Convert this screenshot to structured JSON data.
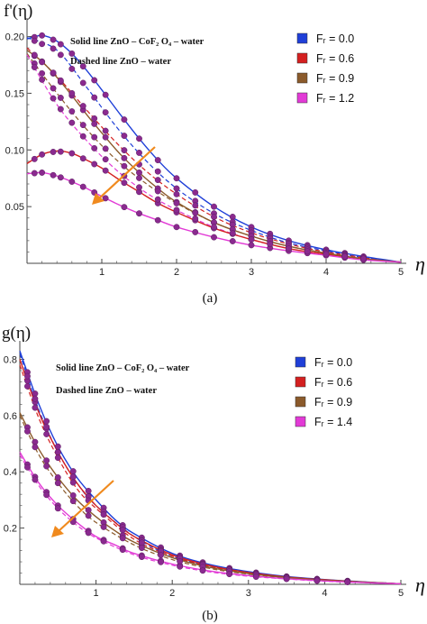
{
  "chart_data": [
    {
      "type": "line",
      "panel": "(a)",
      "ylabel": "f'(η)",
      "xlabel": "η",
      "xlim": [
        0,
        5
      ],
      "ylim": [
        0,
        0.21
      ],
      "xticks": [
        "1",
        "2",
        "3",
        "4",
        "5"
      ],
      "yticks": [
        {
          "value": 0.05,
          "label": "0.05"
        },
        {
          "value": 0.1,
          "label": "0.10"
        },
        {
          "value": 0.15,
          "label": "0.15"
        },
        {
          "value": 0.2,
          "label": "0.20"
        }
      ],
      "annotations": [
        "Solid line  ZnO – CoF₂ O₄ – water",
        "Dashed line ZnO – water"
      ],
      "legend_placement": "top-right",
      "series": [
        {
          "name": "Fᵣ = 0.0",
          "color": "#1f3fd8",
          "line": "solid",
          "x": [
            0,
            0.2,
            0.4,
            0.6,
            0.8,
            1.0,
            1.25,
            1.5,
            1.75,
            2.0,
            2.5,
            3.0,
            3.5,
            4.0,
            4.5,
            5.0
          ],
          "y": [
            0.198,
            0.201,
            0.196,
            0.185,
            0.17,
            0.153,
            0.131,
            0.11,
            0.091,
            0.075,
            0.05,
            0.032,
            0.02,
            0.012,
            0.006,
            0.001
          ]
        },
        {
          "name": "Fᵣ = 0.6",
          "color": "#d42020",
          "line": "solid",
          "x": [
            0,
            0.2,
            0.4,
            0.6,
            0.8,
            1.0,
            1.25,
            1.5,
            1.75,
            2.0,
            2.5,
            3.0,
            3.5,
            4.0,
            4.5,
            5.0
          ],
          "y": [
            0.088,
            0.096,
            0.099,
            0.097,
            0.091,
            0.084,
            0.073,
            0.063,
            0.053,
            0.045,
            0.031,
            0.021,
            0.013,
            0.008,
            0.004,
            0.001
          ]
        },
        {
          "name": "Fᵣ = 0.9",
          "color": "#8b5a2b",
          "line": "solid",
          "x": [
            0,
            0.2,
            0.4,
            0.6,
            0.8,
            1.0,
            1.25,
            1.5,
            1.75,
            2.0,
            2.5,
            3.0,
            3.5,
            4.0,
            4.5,
            5.0
          ],
          "y": [
            0.188,
            0.178,
            0.164,
            0.148,
            0.131,
            0.115,
            0.096,
            0.08,
            0.066,
            0.054,
            0.036,
            0.024,
            0.015,
            0.009,
            0.004,
            0.001
          ]
        },
        {
          "name": "Fᵣ = 1.2",
          "color": "#e23ad6",
          "line": "solid",
          "x": [
            0,
            0.2,
            0.4,
            0.6,
            0.8,
            1.0,
            1.25,
            1.5,
            1.75,
            2.0,
            2.5,
            3.0,
            3.5,
            4.0,
            4.5,
            5.0
          ],
          "y": [
            0.079,
            0.08,
            0.077,
            0.072,
            0.066,
            0.059,
            0.051,
            0.044,
            0.038,
            0.032,
            0.023,
            0.016,
            0.011,
            0.007,
            0.003,
            0.001
          ]
        }
      ],
      "dashed_series": [
        {
          "color": "#1f3fd8",
          "x": [
            0,
            0.4,
            0.8,
            1.2,
            1.6,
            2.0,
            2.5,
            3.0,
            3.5,
            4.0,
            4.5,
            5.0
          ],
          "y": [
            0.199,
            0.188,
            0.155,
            0.12,
            0.09,
            0.066,
            0.044,
            0.029,
            0.018,
            0.011,
            0.005,
            0.001
          ]
        },
        {
          "color": "#d42020",
          "x": [
            0,
            0.4,
            0.8,
            1.2,
            1.6,
            2.0,
            2.5,
            3.0,
            3.5,
            4.0,
            4.5,
            5.0
          ],
          "y": [
            0.19,
            0.165,
            0.135,
            0.106,
            0.081,
            0.061,
            0.041,
            0.027,
            0.017,
            0.01,
            0.005,
            0.001
          ]
        },
        {
          "color": "#8b5a2b",
          "x": [
            0,
            0.4,
            0.8,
            1.2,
            1.6,
            2.0,
            2.5,
            3.0,
            3.5,
            4.0,
            4.5,
            5.0
          ],
          "y": [
            0.185,
            0.15,
            0.118,
            0.091,
            0.07,
            0.053,
            0.036,
            0.024,
            0.015,
            0.009,
            0.004,
            0.001
          ]
        },
        {
          "color": "#e23ad6",
          "x": [
            0,
            0.4,
            0.8,
            1.2,
            1.6,
            2.0,
            2.5,
            3.0,
            3.5,
            4.0,
            4.5,
            5.0
          ],
          "y": [
            0.184,
            0.14,
            0.108,
            0.082,
            0.062,
            0.047,
            0.032,
            0.021,
            0.013,
            0.008,
            0.004,
            0.001
          ]
        }
      ],
      "markers": {
        "color": "#8a2a8f",
        "x": [
          0.1,
          0.2,
          0.35,
          0.45,
          0.6,
          0.75,
          0.9,
          1.05,
          1.3,
          1.5,
          1.75,
          2.0,
          2.25,
          2.5,
          2.75,
          3.0,
          3.25,
          3.5,
          3.75,
          4.0,
          4.25,
          4.5
        ],
        "grid_on": false
      }
    },
    {
      "type": "line",
      "panel": "(b)",
      "ylabel": "g(η)",
      "xlabel": "η",
      "xlim": [
        0,
        5
      ],
      "ylim": [
        0,
        0.84
      ],
      "xticks": [
        "1",
        "2",
        "3",
        "4",
        "5"
      ],
      "yticks": [
        {
          "value": 0.2,
          "label": "0.2"
        },
        {
          "value": 0.4,
          "label": "0.4"
        },
        {
          "value": 0.6,
          "label": "0.6"
        },
        {
          "value": 0.8,
          "label": "0.8"
        }
      ],
      "annotations": [
        "Solid line  ZnO – CoF₂ O₄ – water",
        "Dashed line ZnO – water"
      ],
      "legend_placement": "top-right",
      "series": [
        {
          "name": "Fᵣ = 0.0",
          "color": "#1f3fd8",
          "line": "solid",
          "x": [
            0,
            0.25,
            0.5,
            0.75,
            1.0,
            1.25,
            1.5,
            2.0,
            2.5,
            3.0,
            3.5,
            4.0,
            4.5,
            5.0
          ],
          "y": [
            0.83,
            0.64,
            0.49,
            0.38,
            0.3,
            0.23,
            0.18,
            0.11,
            0.07,
            0.045,
            0.028,
            0.017,
            0.009,
            0.002
          ]
        },
        {
          "name": "Fᵣ = 0.6",
          "color": "#d42020",
          "line": "solid",
          "x": [
            0,
            0.25,
            0.5,
            0.75,
            1.0,
            1.25,
            1.5,
            2.0,
            2.5,
            3.0,
            3.5,
            4.0,
            4.5,
            5.0
          ],
          "y": [
            0.8,
            0.61,
            0.47,
            0.36,
            0.28,
            0.22,
            0.17,
            0.105,
            0.066,
            0.042,
            0.026,
            0.016,
            0.008,
            0.002
          ]
        },
        {
          "name": "Fᵣ = 0.9",
          "color": "#8b5a2b",
          "line": "solid",
          "x": [
            0,
            0.25,
            0.5,
            0.75,
            1.0,
            1.25,
            1.5,
            2.0,
            2.5,
            3.0,
            3.5,
            4.0,
            4.5,
            5.0
          ],
          "y": [
            0.61,
            0.48,
            0.38,
            0.3,
            0.24,
            0.19,
            0.15,
            0.095,
            0.06,
            0.038,
            0.024,
            0.014,
            0.008,
            0.002
          ]
        },
        {
          "name": "Fᵣ = 1.4",
          "color": "#e23ad6",
          "line": "solid",
          "x": [
            0,
            0.25,
            0.5,
            0.75,
            1.0,
            1.25,
            1.5,
            2.0,
            2.5,
            3.0,
            3.5,
            4.0,
            4.5,
            5.0
          ],
          "y": [
            0.47,
            0.36,
            0.28,
            0.22,
            0.17,
            0.14,
            0.11,
            0.072,
            0.047,
            0.031,
            0.02,
            0.012,
            0.006,
            0.002
          ]
        }
      ],
      "dashed_series": [
        {
          "color": "#1f3fd8",
          "x": [
            0,
            0.25,
            0.5,
            0.75,
            1.0,
            1.5,
            2.0,
            2.5,
            3.0,
            3.5,
            4.0,
            4.5,
            5.0
          ],
          "y": [
            0.82,
            0.62,
            0.47,
            0.36,
            0.28,
            0.17,
            0.1,
            0.065,
            0.042,
            0.026,
            0.016,
            0.008,
            0.002
          ]
        },
        {
          "color": "#d42020",
          "x": [
            0,
            0.25,
            0.5,
            0.75,
            1.0,
            1.5,
            2.0,
            2.5,
            3.0,
            3.5,
            4.0,
            4.5,
            5.0
          ],
          "y": [
            0.78,
            0.59,
            0.45,
            0.34,
            0.27,
            0.16,
            0.1,
            0.062,
            0.04,
            0.025,
            0.015,
            0.008,
            0.002
          ]
        },
        {
          "color": "#8b5a2b",
          "x": [
            0,
            0.25,
            0.5,
            0.75,
            1.0,
            1.5,
            2.0,
            2.5,
            3.0,
            3.5,
            4.0,
            4.5,
            5.0
          ],
          "y": [
            0.6,
            0.46,
            0.36,
            0.28,
            0.22,
            0.14,
            0.088,
            0.056,
            0.036,
            0.023,
            0.014,
            0.007,
            0.002
          ]
        },
        {
          "color": "#e23ad6",
          "x": [
            0,
            0.25,
            0.5,
            0.75,
            1.0,
            1.5,
            2.0,
            2.5,
            3.0,
            3.5,
            4.0,
            4.5,
            5.0
          ],
          "y": [
            0.46,
            0.35,
            0.27,
            0.21,
            0.165,
            0.105,
            0.068,
            0.044,
            0.029,
            0.019,
            0.011,
            0.006,
            0.002
          ]
        }
      ],
      "markers": {
        "color": "#8a2a8f",
        "x": [
          0.1,
          0.2,
          0.35,
          0.5,
          0.7,
          0.9,
          1.1,
          1.35,
          1.6,
          1.85,
          2.1,
          2.4,
          2.75,
          3.1,
          3.5,
          3.9,
          4.3
        ],
        "grid_on": false
      }
    }
  ],
  "captions": [
    "(a)",
    "(b)"
  ],
  "arrow_color": "#f08a1e"
}
